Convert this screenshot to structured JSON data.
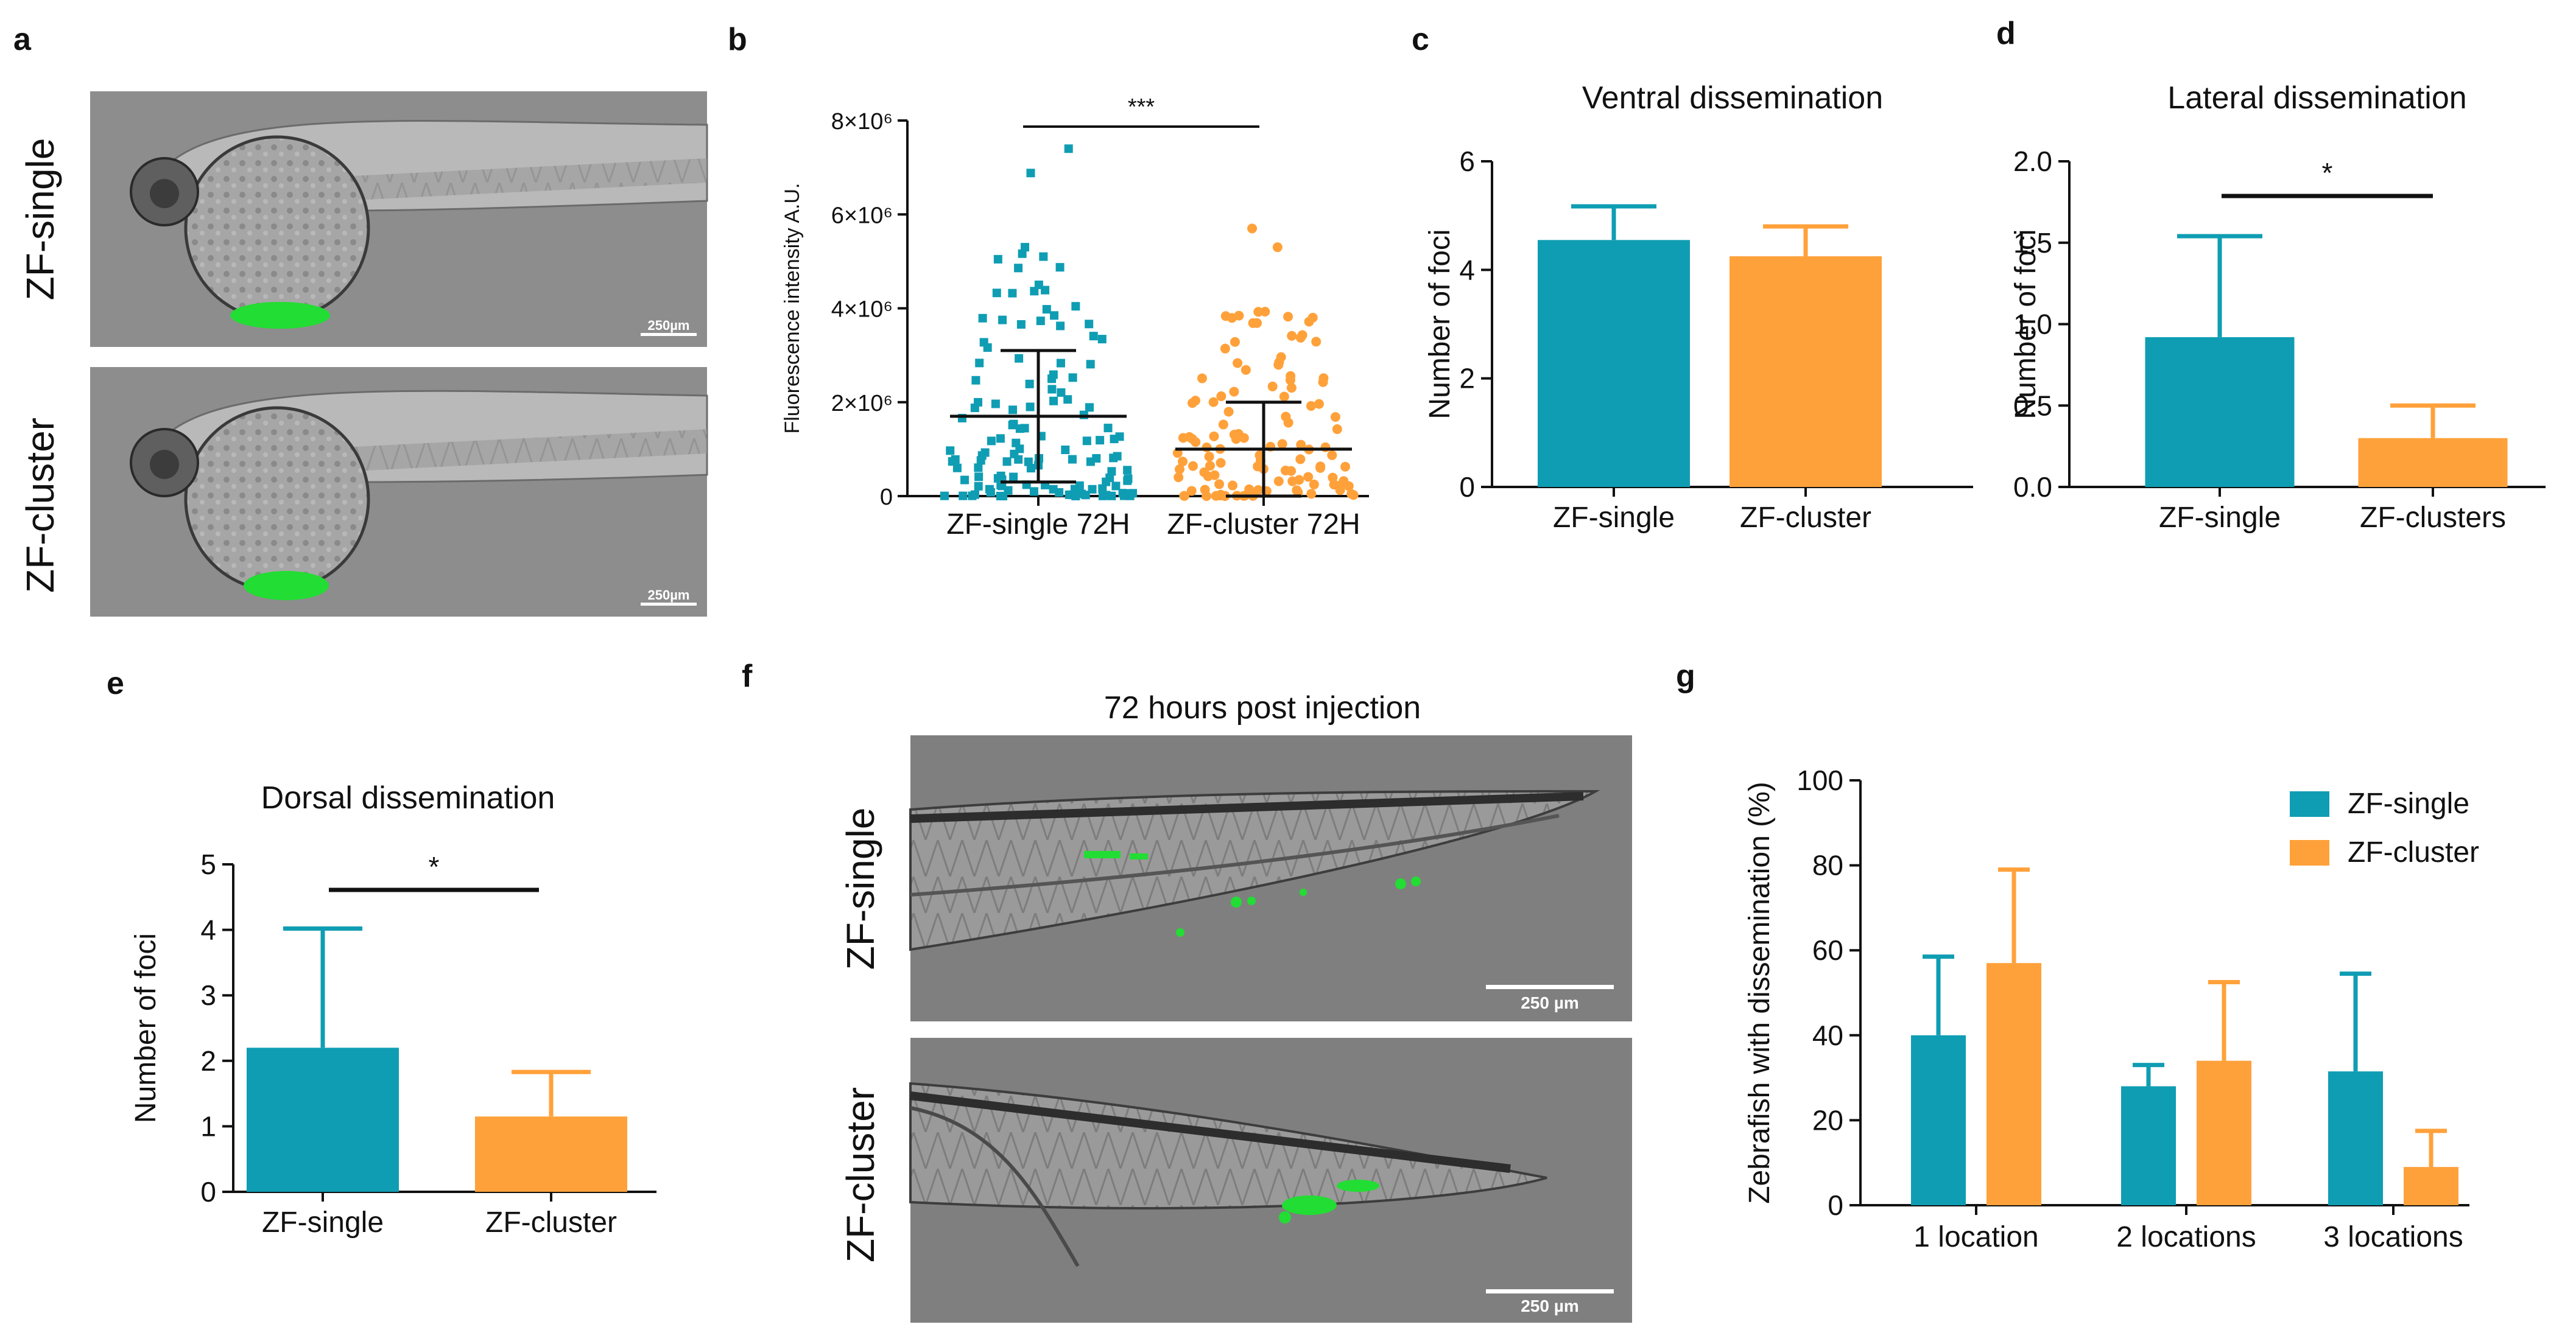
{
  "colors": {
    "single": "#0F9DB3",
    "cluster": "#FFA13A"
  },
  "panels": {
    "a": {
      "letter": "a",
      "labels": [
        "ZF-single",
        "ZF-cluster"
      ],
      "scalebar": "250µm"
    },
    "f": {
      "letter": "f",
      "title": "72 hours post injection",
      "labels": [
        "ZF-single",
        "ZF-cluster"
      ],
      "scalebar": "250 µm"
    }
  },
  "chart_data": [
    {
      "panel": "b",
      "type": "scatter",
      "ylabel": "Fluorescence intensity A.U.",
      "ylim": [
        0,
        8000000
      ],
      "yticks": [
        0,
        2000000,
        4000000,
        6000000,
        8000000
      ],
      "ytick_labels": [
        "0",
        "2×10⁶",
        "4×10⁶",
        "6×10⁶",
        "8×10⁶"
      ],
      "categories": [
        "ZF-single 72H",
        "ZF-cluster 72H"
      ],
      "series": [
        {
          "name": "ZF-single 72H",
          "mean": 1700000,
          "sd_low": 300000,
          "sd_high": 3100000,
          "n": 130,
          "max": 7400000
        },
        {
          "name": "ZF-cluster 72H",
          "mean": 1000000,
          "sd_low": 0,
          "sd_high": 2000000,
          "n": 120,
          "max": 5700000
        }
      ],
      "significance": "***"
    },
    {
      "panel": "c",
      "type": "bar",
      "title": "Ventral dissemination",
      "ylabel": "Number of foci",
      "ylim": [
        0,
        6
      ],
      "yticks": [
        0,
        2,
        4,
        6
      ],
      "categories": [
        "ZF-single",
        "ZF-cluster"
      ],
      "values": [
        4.55,
        4.25
      ],
      "errors": [
        0.62,
        0.55
      ]
    },
    {
      "panel": "d",
      "type": "bar",
      "title": "Lateral dissemination",
      "ylabel": "Number of foci",
      "ylim": [
        0,
        2.0
      ],
      "yticks": [
        0,
        0.5,
        1.0,
        1.5,
        2.0
      ],
      "ytick_labels": [
        "0.0",
        "0.5",
        "1.0",
        "1.5",
        "2.0"
      ],
      "categories": [
        "ZF-single",
        "ZF-clusters"
      ],
      "values": [
        0.92,
        0.3
      ],
      "errors": [
        0.62,
        0.2
      ],
      "significance": "*"
    },
    {
      "panel": "e",
      "type": "bar",
      "title": "Dorsal dissemination",
      "ylabel": "Number of foci",
      "ylim": [
        0,
        5
      ],
      "yticks": [
        0,
        1,
        2,
        3,
        4,
        5
      ],
      "categories": [
        "ZF-single",
        "ZF-cluster"
      ],
      "values": [
        2.2,
        1.15
      ],
      "errors": [
        1.82,
        0.68
      ],
      "significance": "*"
    },
    {
      "panel": "g",
      "type": "bar",
      "ylabel": "Zebrafish with dissemination (%)",
      "ylim": [
        0,
        100
      ],
      "yticks": [
        0,
        20,
        40,
        60,
        80,
        100
      ],
      "categories": [
        "1 location",
        "2 locations",
        "3 locations"
      ],
      "series": [
        {
          "name": "ZF-single",
          "values": [
            40,
            28,
            31.5
          ],
          "errors": [
            18.5,
            5,
            23
          ]
        },
        {
          "name": "ZF-cluster",
          "values": [
            57,
            34,
            9
          ],
          "errors": [
            22,
            18.5,
            8.5
          ]
        }
      ],
      "legend": "top-right"
    }
  ]
}
